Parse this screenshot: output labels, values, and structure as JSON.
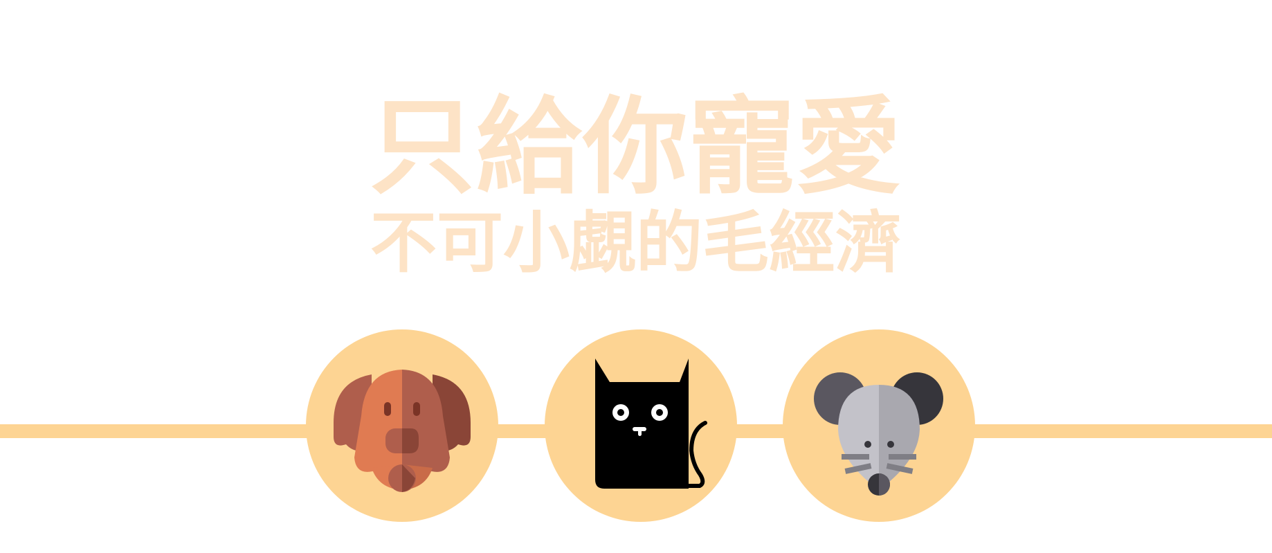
{
  "headline": {
    "line1": "只給你寵愛",
    "line2": "不可小覷的毛經濟"
  },
  "colors": {
    "headline": "#FDE3C6",
    "accent": "#FDD493"
  },
  "icons": [
    "dog-icon",
    "cat-icon",
    "mouse-icon"
  ]
}
